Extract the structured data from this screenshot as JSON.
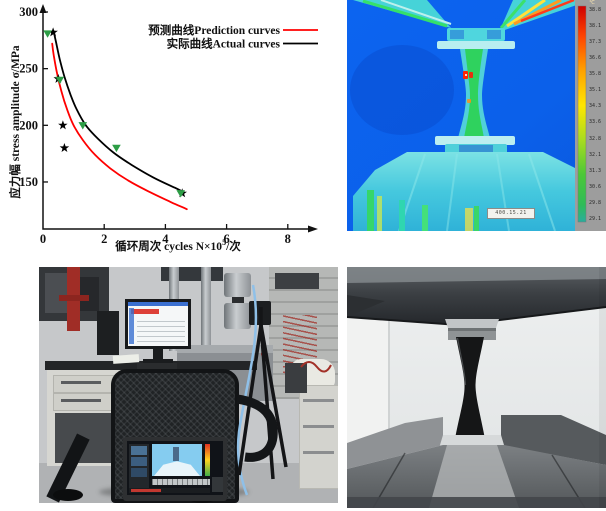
{
  "chart_data": {
    "type": "line",
    "title": "",
    "xlabel_prefix": "循环周次 cycles N×10",
    "xlabel_sup": "5",
    "xlabel_suffix": "/次",
    "ylabel": "应力幅 stress amplitude σ/MPa",
    "xlim": [
      0,
      9.2
    ],
    "ylim": [
      108,
      300
    ],
    "xticks": [
      0,
      2,
      4,
      6,
      8
    ],
    "yticks": [
      150,
      200,
      250,
      300
    ],
    "grid": false,
    "legend_position": "top-right",
    "legend": [
      {
        "label": "预测曲线Prediction curves",
        "color": "#ff0000"
      },
      {
        "label": "实际曲线Actual curves",
        "color": "#000000"
      }
    ],
    "series": [
      {
        "name": "Prediction curves",
        "color": "#ff0000",
        "points": [
          [
            0.3,
            272
          ],
          [
            0.35,
            262
          ],
          [
            0.45,
            247
          ],
          [
            0.6,
            230
          ],
          [
            0.8,
            213
          ],
          [
            1.0,
            200
          ],
          [
            1.3,
            187
          ],
          [
            1.7,
            174
          ],
          [
            2.2,
            162
          ],
          [
            2.8,
            151
          ],
          [
            3.5,
            141
          ],
          [
            4.2,
            132
          ],
          [
            4.7,
            126
          ]
        ]
      },
      {
        "name": "Actual curves",
        "color": "#000000",
        "points": [
          [
            0.35,
            283
          ],
          [
            0.42,
            274
          ],
          [
            0.55,
            258
          ],
          [
            0.7,
            243
          ],
          [
            0.9,
            227
          ],
          [
            1.1,
            214
          ],
          [
            1.4,
            200
          ],
          [
            1.8,
            188
          ],
          [
            2.3,
            176
          ],
          [
            2.9,
            165
          ],
          [
            3.6,
            154
          ],
          [
            4.3,
            145
          ],
          [
            4.6,
            141
          ]
        ]
      }
    ],
    "markers": [
      {
        "name": "actual-data-points",
        "shape": "star",
        "color": "#000000",
        "points": [
          [
            0.33,
            282
          ],
          [
            0.5,
            241
          ],
          [
            0.65,
            200
          ],
          [
            0.7,
            180
          ],
          [
            4.55,
            140
          ]
        ]
      },
      {
        "name": "prediction-data-points",
        "shape": "triangle-down",
        "color": "#2d9e46",
        "points": [
          [
            0.15,
            281
          ],
          [
            0.55,
            240
          ],
          [
            1.3,
            200
          ],
          [
            2.4,
            180
          ],
          [
            4.5,
            140
          ]
        ]
      }
    ]
  },
  "thermal": {
    "overlay_label": "400.15.21",
    "colorbar_unit": "℃",
    "colorbar_ticks": [
      "38.8",
      "38.1",
      "37.3",
      "36.6",
      "35.8",
      "35.1",
      "34.3",
      "33.6",
      "32.8",
      "32.1",
      "31.3",
      "30.6",
      "29.8",
      "29.1"
    ]
  }
}
